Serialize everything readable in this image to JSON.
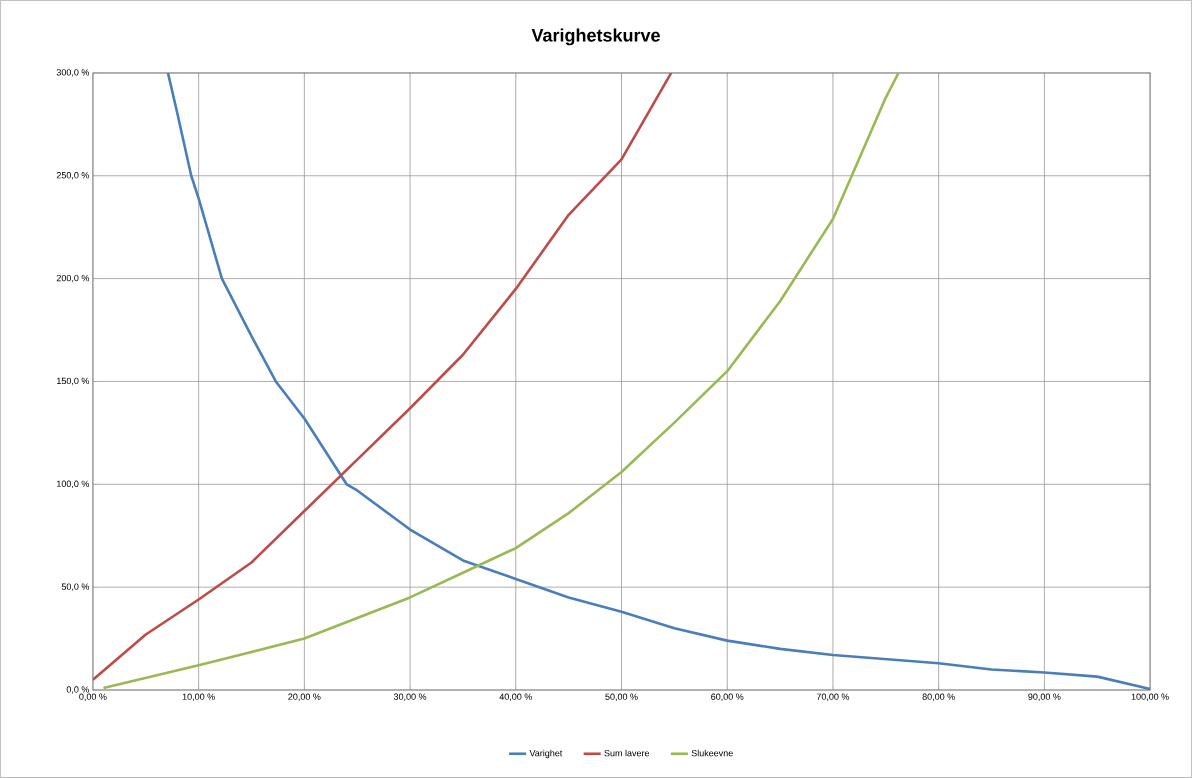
{
  "chart_data": {
    "type": "line",
    "title": "Varighetskurve",
    "xlim": [
      0,
      100
    ],
    "ylim": [
      0,
      300
    ],
    "xticks": [
      {
        "value": 0,
        "label": "0,00 %"
      },
      {
        "value": 10,
        "label": "10,00 %"
      },
      {
        "value": 20,
        "label": "20,00 %"
      },
      {
        "value": 30,
        "label": "30,00 %"
      },
      {
        "value": 40,
        "label": "40,00 %"
      },
      {
        "value": 50,
        "label": "50,00 %"
      },
      {
        "value": 60,
        "label": "60,00 %"
      },
      {
        "value": 70,
        "label": "70,00 %"
      },
      {
        "value": 80,
        "label": "80,00 %"
      },
      {
        "value": 90,
        "label": "90,00 %"
      },
      {
        "value": 100,
        "label": "100,00 %"
      }
    ],
    "yticks": [
      {
        "value": 0,
        "label": "0,0 %"
      },
      {
        "value": 50,
        "label": "50,0 %"
      },
      {
        "value": 100,
        "label": "100,0 %"
      },
      {
        "value": 150,
        "label": "150,0 %"
      },
      {
        "value": 200,
        "label": "200,0 %"
      },
      {
        "value": 250,
        "label": "250,0 %"
      },
      {
        "value": 300,
        "label": "300,0 %"
      }
    ],
    "grid": true,
    "legend": "bottom",
    "marker": "none",
    "line_style": "solid",
    "series": [
      {
        "name": "Varighet",
        "color": "#4a7ebb",
        "x": [
          7.1,
          8,
          9.3,
          10,
          12.2,
          15,
          17.3,
          20,
          24,
          25,
          30,
          35,
          40,
          45,
          50,
          55,
          60,
          65,
          70,
          75,
          80,
          85,
          90,
          95,
          100
        ],
        "values": [
          300,
          280,
          250,
          239,
          200,
          172,
          150,
          132,
          100,
          97,
          78,
          63,
          54,
          45,
          38,
          30,
          24,
          20,
          17,
          15,
          13,
          10,
          8.5,
          6.5,
          0.5
        ]
      },
      {
        "name": "Sum lavere",
        "color": "#be4b48",
        "x": [
          0,
          5,
          10,
          15,
          20,
          25,
          30,
          35,
          40,
          45,
          50,
          54.7
        ],
        "values": [
          5,
          27,
          44,
          62,
          87,
          112,
          137,
          163,
          195,
          231,
          258,
          300
        ]
      },
      {
        "name": "Slukeevne",
        "color": "#98b954",
        "x": [
          1,
          10,
          20,
          30,
          35,
          40,
          45,
          50,
          55,
          60,
          65,
          70,
          75,
          76.2
        ],
        "values": [
          1,
          12,
          25,
          45,
          57,
          69,
          86,
          106,
          130,
          155,
          189,
          229,
          288,
          300
        ]
      }
    ]
  }
}
